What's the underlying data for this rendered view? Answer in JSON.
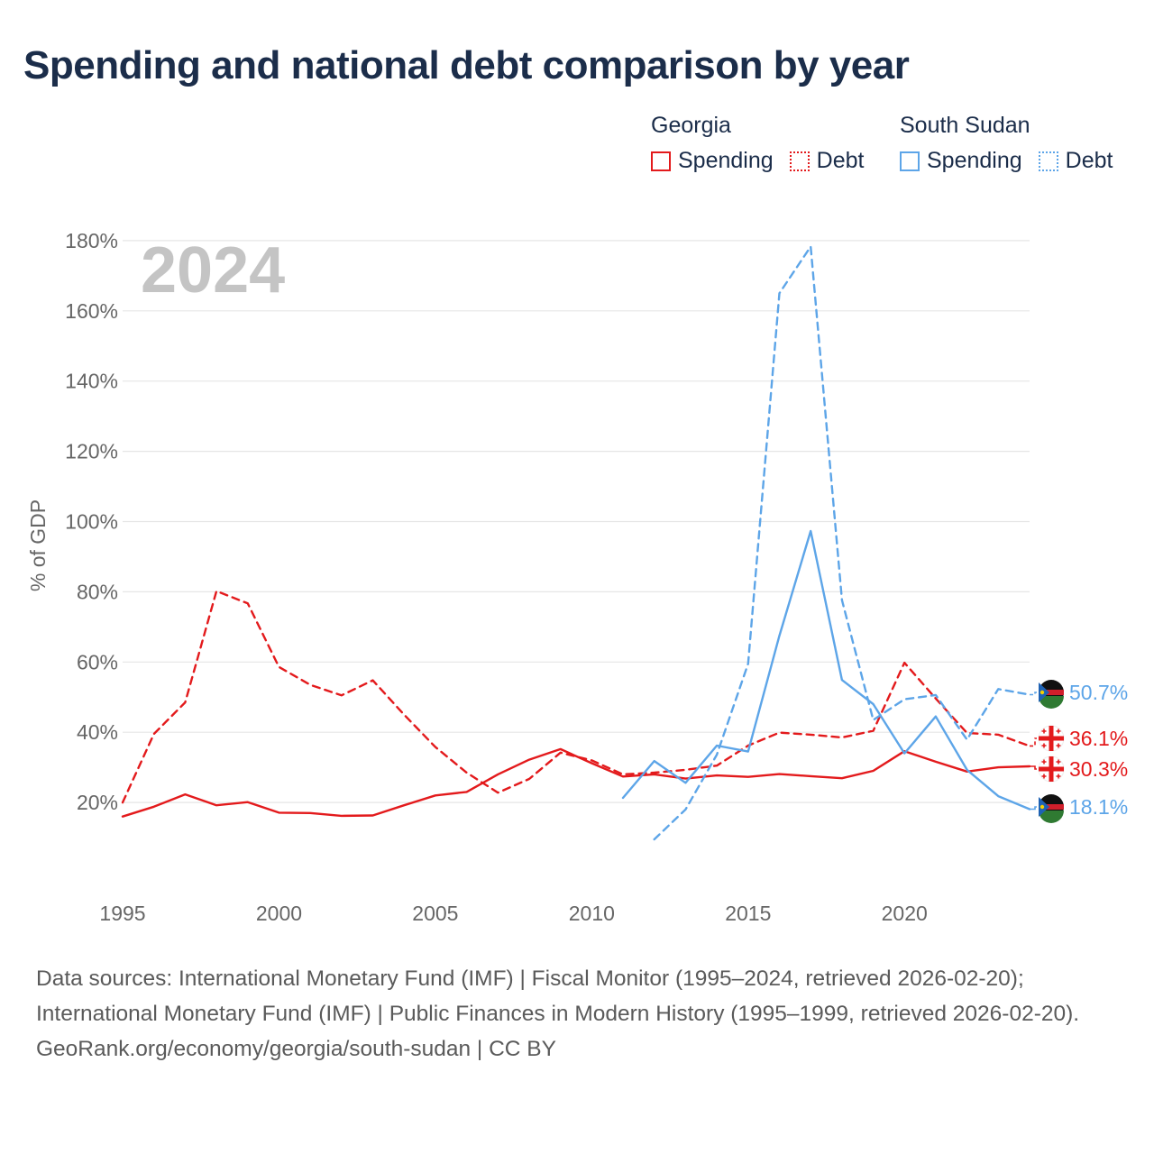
{
  "title": "Spending and national debt comparison by year",
  "legend": {
    "groups": [
      {
        "country": "Georgia",
        "color": "#e31a1c",
        "items": [
          "Spending",
          "Debt"
        ]
      },
      {
        "country": "South Sudan",
        "color": "#5da5e8",
        "items": [
          "Spending",
          "Debt"
        ]
      }
    ]
  },
  "chart_data": {
    "type": "line",
    "title": "Spending and national debt comparison by year",
    "ylabel": "% of GDP",
    "xlabel": "",
    "year_watermark": "2024",
    "x_ticks": [
      "1995",
      "2000",
      "2005",
      "2010",
      "2015",
      "2020"
    ],
    "y_ticks": [
      "20%",
      "40%",
      "60%",
      "80%",
      "100%",
      "120%",
      "140%",
      "160%",
      "180%"
    ],
    "xlim": [
      1995,
      2024
    ],
    "ylim": [
      0,
      180
    ],
    "series": [
      {
        "name": "Georgia Spending",
        "country": "Georgia",
        "metric": "Spending",
        "style": "solid",
        "color": "#e31a1c",
        "x": [
          1995,
          1996,
          1997,
          1998,
          1999,
          2000,
          2001,
          2002,
          2003,
          2004,
          2005,
          2006,
          2007,
          2008,
          2009,
          2010,
          2011,
          2012,
          2013,
          2014,
          2015,
          2016,
          2017,
          2018,
          2019,
          2020,
          2021,
          2022,
          2023,
          2024
        ],
        "y": [
          16.0,
          18.8,
          22.3,
          19.2,
          20.1,
          17.1,
          17.0,
          16.2,
          16.3,
          19.2,
          22.0,
          23.0,
          28.0,
          32.2,
          35.2,
          31.2,
          27.4,
          28.0,
          26.8,
          27.7,
          27.3,
          28.1,
          27.5,
          26.9,
          29.0,
          34.6,
          31.6,
          28.8,
          30.0,
          30.3
        ]
      },
      {
        "name": "Georgia Debt",
        "country": "Georgia",
        "metric": "Debt",
        "style": "dashed",
        "color": "#e31a1c",
        "x": [
          1995,
          1996,
          1997,
          1998,
          1999,
          2000,
          2001,
          2002,
          2003,
          2004,
          2005,
          2006,
          2007,
          2008,
          2009,
          2010,
          2011,
          2012,
          2013,
          2014,
          2015,
          2016,
          2017,
          2018,
          2019,
          2020,
          2021,
          2022,
          2023,
          2024
        ],
        "y": [
          20.0,
          39.5,
          48.5,
          80.2,
          76.7,
          58.6,
          53.5,
          50.5,
          54.8,
          45.0,
          35.8,
          28.5,
          22.8,
          26.7,
          34.2,
          32.0,
          28.0,
          28.5,
          29.3,
          30.5,
          36.2,
          39.9,
          39.3,
          38.5,
          40.4,
          59.8,
          49.6,
          39.8,
          39.3,
          36.1
        ]
      },
      {
        "name": "South Sudan Spending",
        "country": "South Sudan",
        "metric": "Spending",
        "style": "solid",
        "color": "#5da5e8",
        "x": [
          2011,
          2012,
          2013,
          2014,
          2015,
          2016,
          2017,
          2018,
          2019,
          2020,
          2021,
          2022,
          2023,
          2024
        ],
        "y": [
          21.3,
          31.8,
          25.6,
          36.2,
          34.5,
          67.5,
          97.3,
          54.9,
          48.0,
          34.0,
          44.5,
          29.3,
          21.8,
          18.1
        ]
      },
      {
        "name": "South Sudan Debt",
        "country": "South Sudan",
        "metric": "Debt",
        "style": "dashed",
        "color": "#5da5e8",
        "x": [
          2012,
          2013,
          2014,
          2015,
          2016,
          2017,
          2018,
          2019,
          2020,
          2021,
          2022,
          2023,
          2024
        ],
        "y": [
          9.5,
          18.0,
          33.6,
          59.5,
          165.0,
          178.3,
          77.6,
          43.5,
          49.4,
          50.6,
          37.9,
          52.3,
          50.7
        ]
      }
    ],
    "end_labels": [
      {
        "text": "50.7%",
        "country": "South Sudan",
        "color": "#5da5e8",
        "value": 50.7,
        "row": 0
      },
      {
        "text": "36.1%",
        "country": "Georgia",
        "color": "#e31a1c",
        "value": 36.1,
        "row": 1
      },
      {
        "text": "30.3%",
        "country": "Georgia",
        "color": "#e31a1c",
        "value": 30.3,
        "row": 2
      },
      {
        "text": "18.1%",
        "country": "South Sudan",
        "color": "#5da5e8",
        "value": 18.1,
        "row": 3
      }
    ]
  },
  "footer": {
    "sources": "Data sources: International Monetary Fund (IMF) | Fiscal Monitor (1995–2024, retrieved 2026-02-20); International Monetary Fund (IMF) | Public Finances in Modern History (1995–1999, retrieved 2026-02-20).",
    "attribution": "GeoRank.org/economy/georgia/south-sudan | CC BY"
  }
}
